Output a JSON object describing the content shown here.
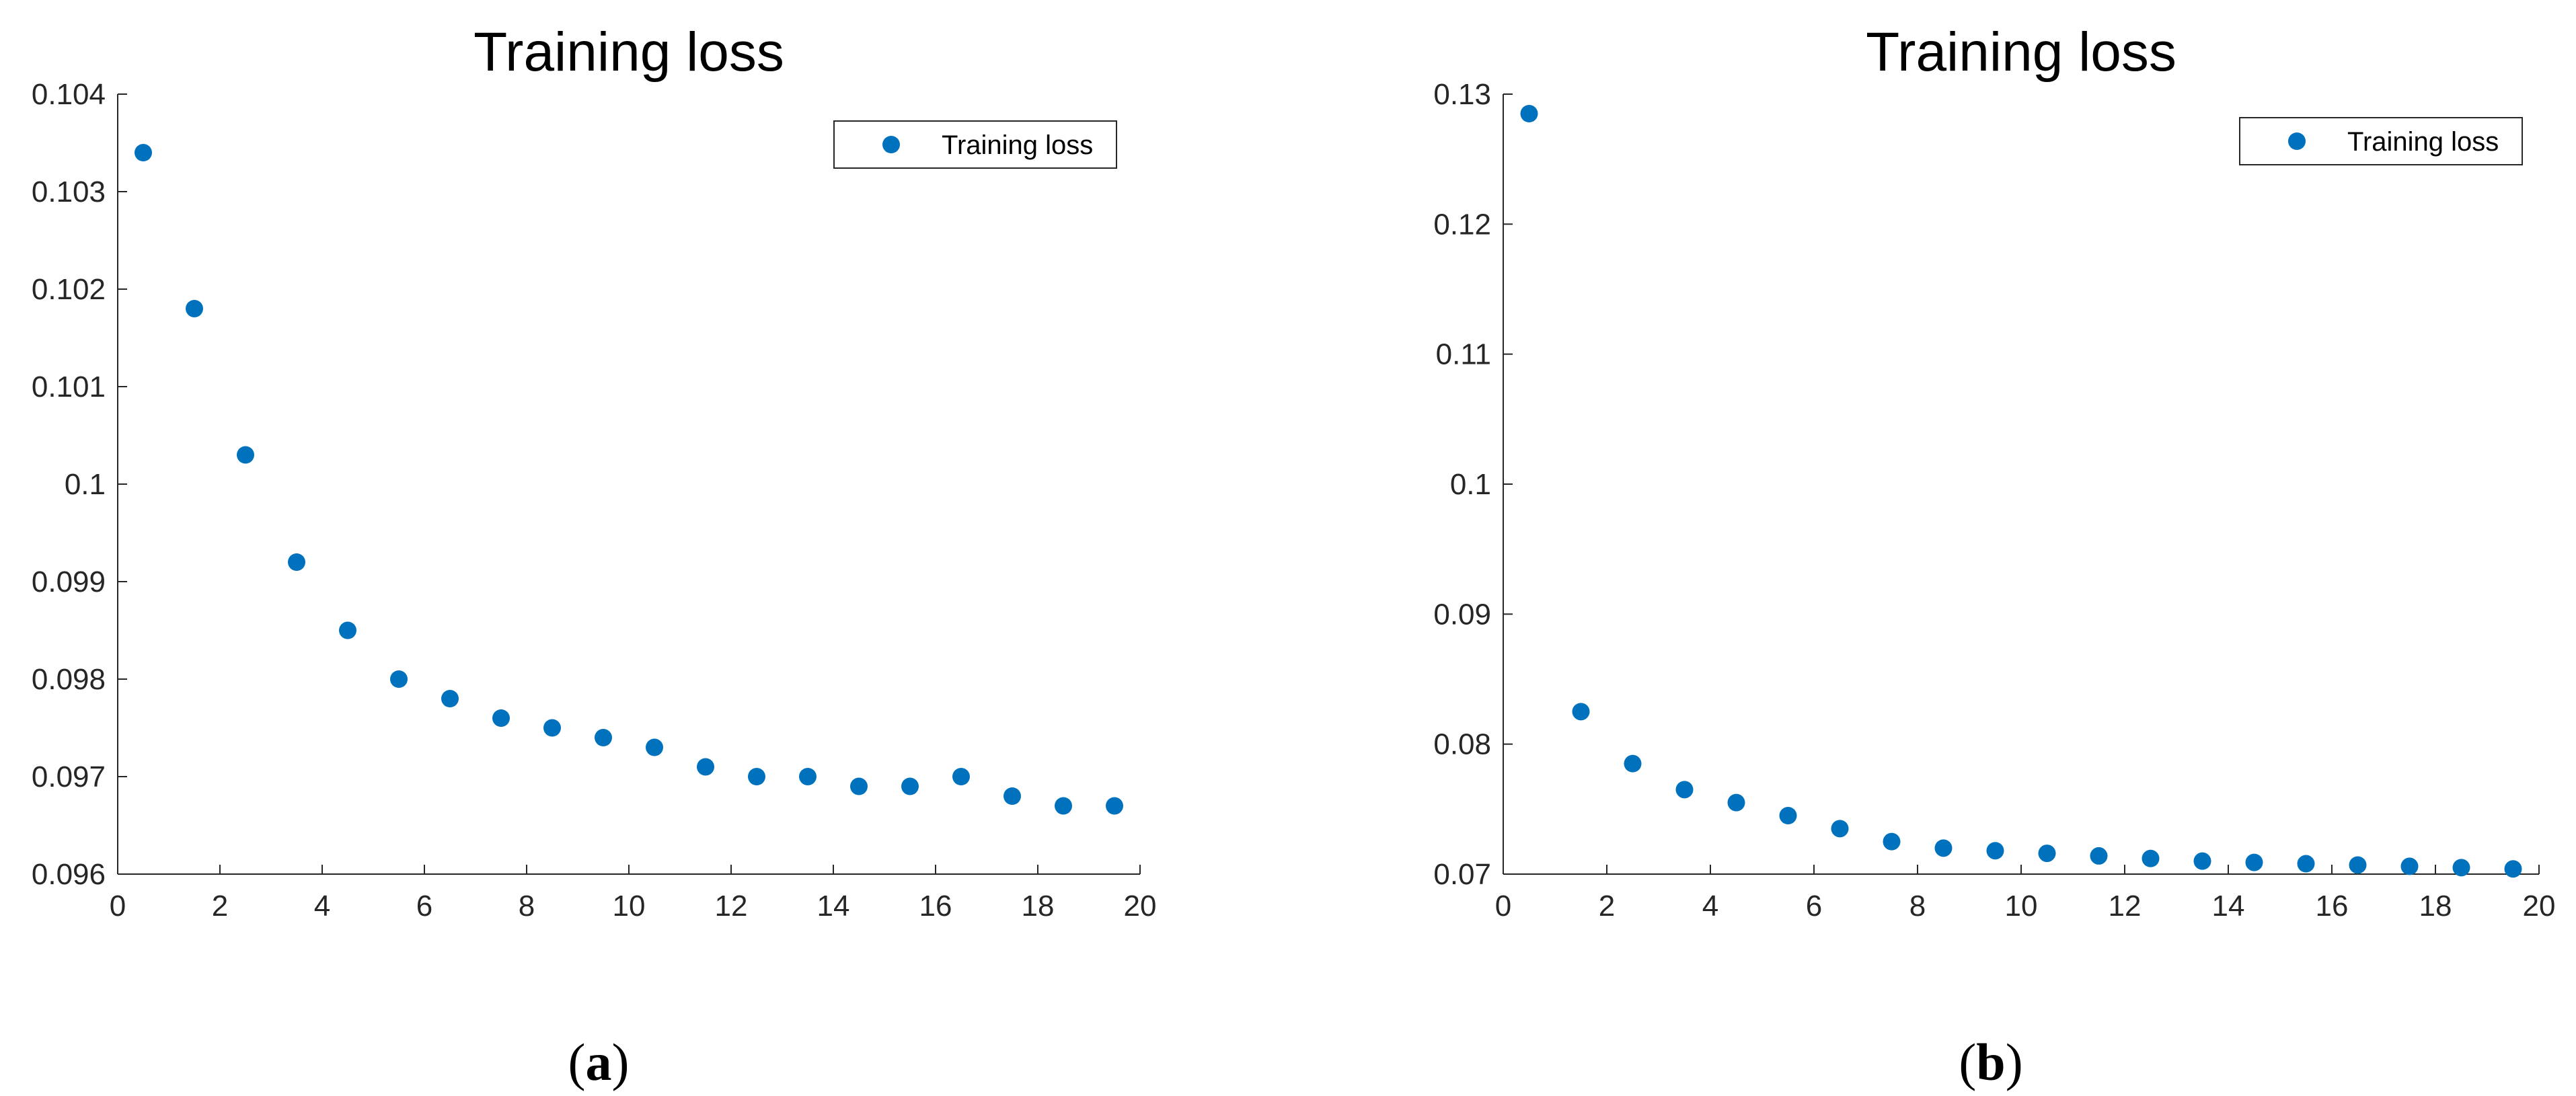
{
  "chart_data": [
    {
      "type": "scatter",
      "title": "Training loss",
      "panel_label": "a",
      "legend": {
        "entries": [
          "Training loss"
        ],
        "position": "top-right"
      },
      "xlim": [
        0,
        20
      ],
      "ylim": [
        0.096,
        0.104
      ],
      "xticks": [
        "0",
        "2",
        "4",
        "6",
        "8",
        "10",
        "12",
        "14",
        "16",
        "18",
        "20"
      ],
      "yticks": [
        "0.096",
        "0.097",
        "0.098",
        "0.099",
        "0.1",
        "0.101",
        "0.102",
        "0.103",
        "0.104"
      ],
      "grid": false,
      "color": "#0072BD",
      "series": [
        {
          "name": "Training loss",
          "x": [
            0.5,
            1.5,
            2.5,
            3.5,
            4.5,
            5.5,
            6.5,
            7.5,
            8.5,
            9.5,
            10.5,
            11.5,
            12.5,
            13.5,
            14.5,
            15.5,
            16.5,
            17.5,
            18.5,
            19.5
          ],
          "y": [
            0.1034,
            0.1018,
            0.1003,
            0.0992,
            0.0985,
            0.098,
            0.0978,
            0.0976,
            0.0975,
            0.0974,
            0.0973,
            0.0971,
            0.097,
            0.097,
            0.0969,
            0.0969,
            0.097,
            0.0968,
            0.0967,
            0.0967
          ]
        }
      ]
    },
    {
      "type": "scatter",
      "title": "Training loss",
      "panel_label": "b",
      "legend": {
        "entries": [
          "Training loss"
        ],
        "position": "top-right"
      },
      "xlim": [
        0,
        20
      ],
      "ylim": [
        0.07,
        0.13
      ],
      "xticks": [
        "0",
        "2",
        "4",
        "6",
        "8",
        "10",
        "12",
        "14",
        "16",
        "18",
        "20"
      ],
      "yticks": [
        "0.07",
        "0.08",
        "0.09",
        "0.1",
        "0.11",
        "0.12",
        "0.13"
      ],
      "grid": false,
      "color": "#0072BD",
      "series": [
        {
          "name": "Training loss",
          "x": [
            0.5,
            1.5,
            2.5,
            3.5,
            4.5,
            5.5,
            6.5,
            7.5,
            8.5,
            9.5,
            10.5,
            11.5,
            12.5,
            13.5,
            14.5,
            15.5,
            16.5,
            17.5,
            18.5,
            19.5
          ],
          "y": [
            0.1285,
            0.0825,
            0.0785,
            0.0765,
            0.0755,
            0.0745,
            0.0735,
            0.0725,
            0.072,
            0.0718,
            0.0716,
            0.0714,
            0.0712,
            0.071,
            0.0709,
            0.0708,
            0.0707,
            0.0706,
            0.0705,
            0.0704
          ]
        }
      ]
    }
  ]
}
